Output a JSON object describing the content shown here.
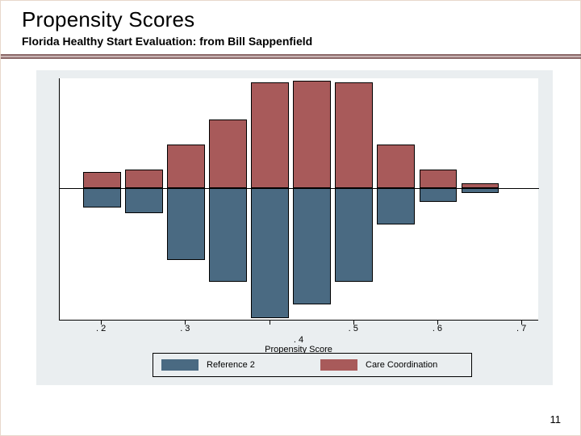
{
  "title": "Propensity Scores",
  "subtitle": "Florida Healthy Start Evaluation: from Bill Sappenfield",
  "page_number": "11",
  "chart": {
    "type": "bar",
    "xlabel": ". 4\nPropensity Score",
    "xlabel_main": "Propensity Score",
    "xtick_labels": [
      ". 2",
      ". 3",
      ". 4",
      ". 5",
      ". 6",
      ". 7"
    ],
    "xtick_positions": [
      0.2,
      0.3,
      0.4,
      0.5,
      0.6,
      0.7
    ],
    "xlim": [
      0.15,
      0.72
    ],
    "baseline_y": 0,
    "ylim": [
      -240,
      200
    ],
    "background_color": "#eaeef0",
    "plot_background": "#ffffff",
    "series": [
      {
        "name": "Care Coordination",
        "color": "#a85a5a",
        "legend_label": "Care Coordination",
        "bar_width": 0.045,
        "x": [
          0.2,
          0.25,
          0.3,
          0.35,
          0.4,
          0.45,
          0.5,
          0.55,
          0.6,
          0.65
        ],
        "values": [
          30,
          35,
          80,
          125,
          192,
          195,
          192,
          80,
          35,
          10
        ]
      },
      {
        "name": "Reference 2",
        "color": "#4a6a82",
        "legend_label": "Reference 2",
        "bar_width": 0.045,
        "x": [
          0.2,
          0.25,
          0.3,
          0.35,
          0.4,
          0.45,
          0.5,
          0.55,
          0.6,
          0.65
        ],
        "values": [
          -35,
          -45,
          -130,
          -170,
          -235,
          -210,
          -170,
          -65,
          -25,
          -8
        ]
      }
    ],
    "legend": {
      "items": [
        {
          "label": "Reference 2",
          "color": "#4a6a82"
        },
        {
          "label": "Care Coordination",
          "color": "#a85a5a"
        }
      ]
    }
  }
}
